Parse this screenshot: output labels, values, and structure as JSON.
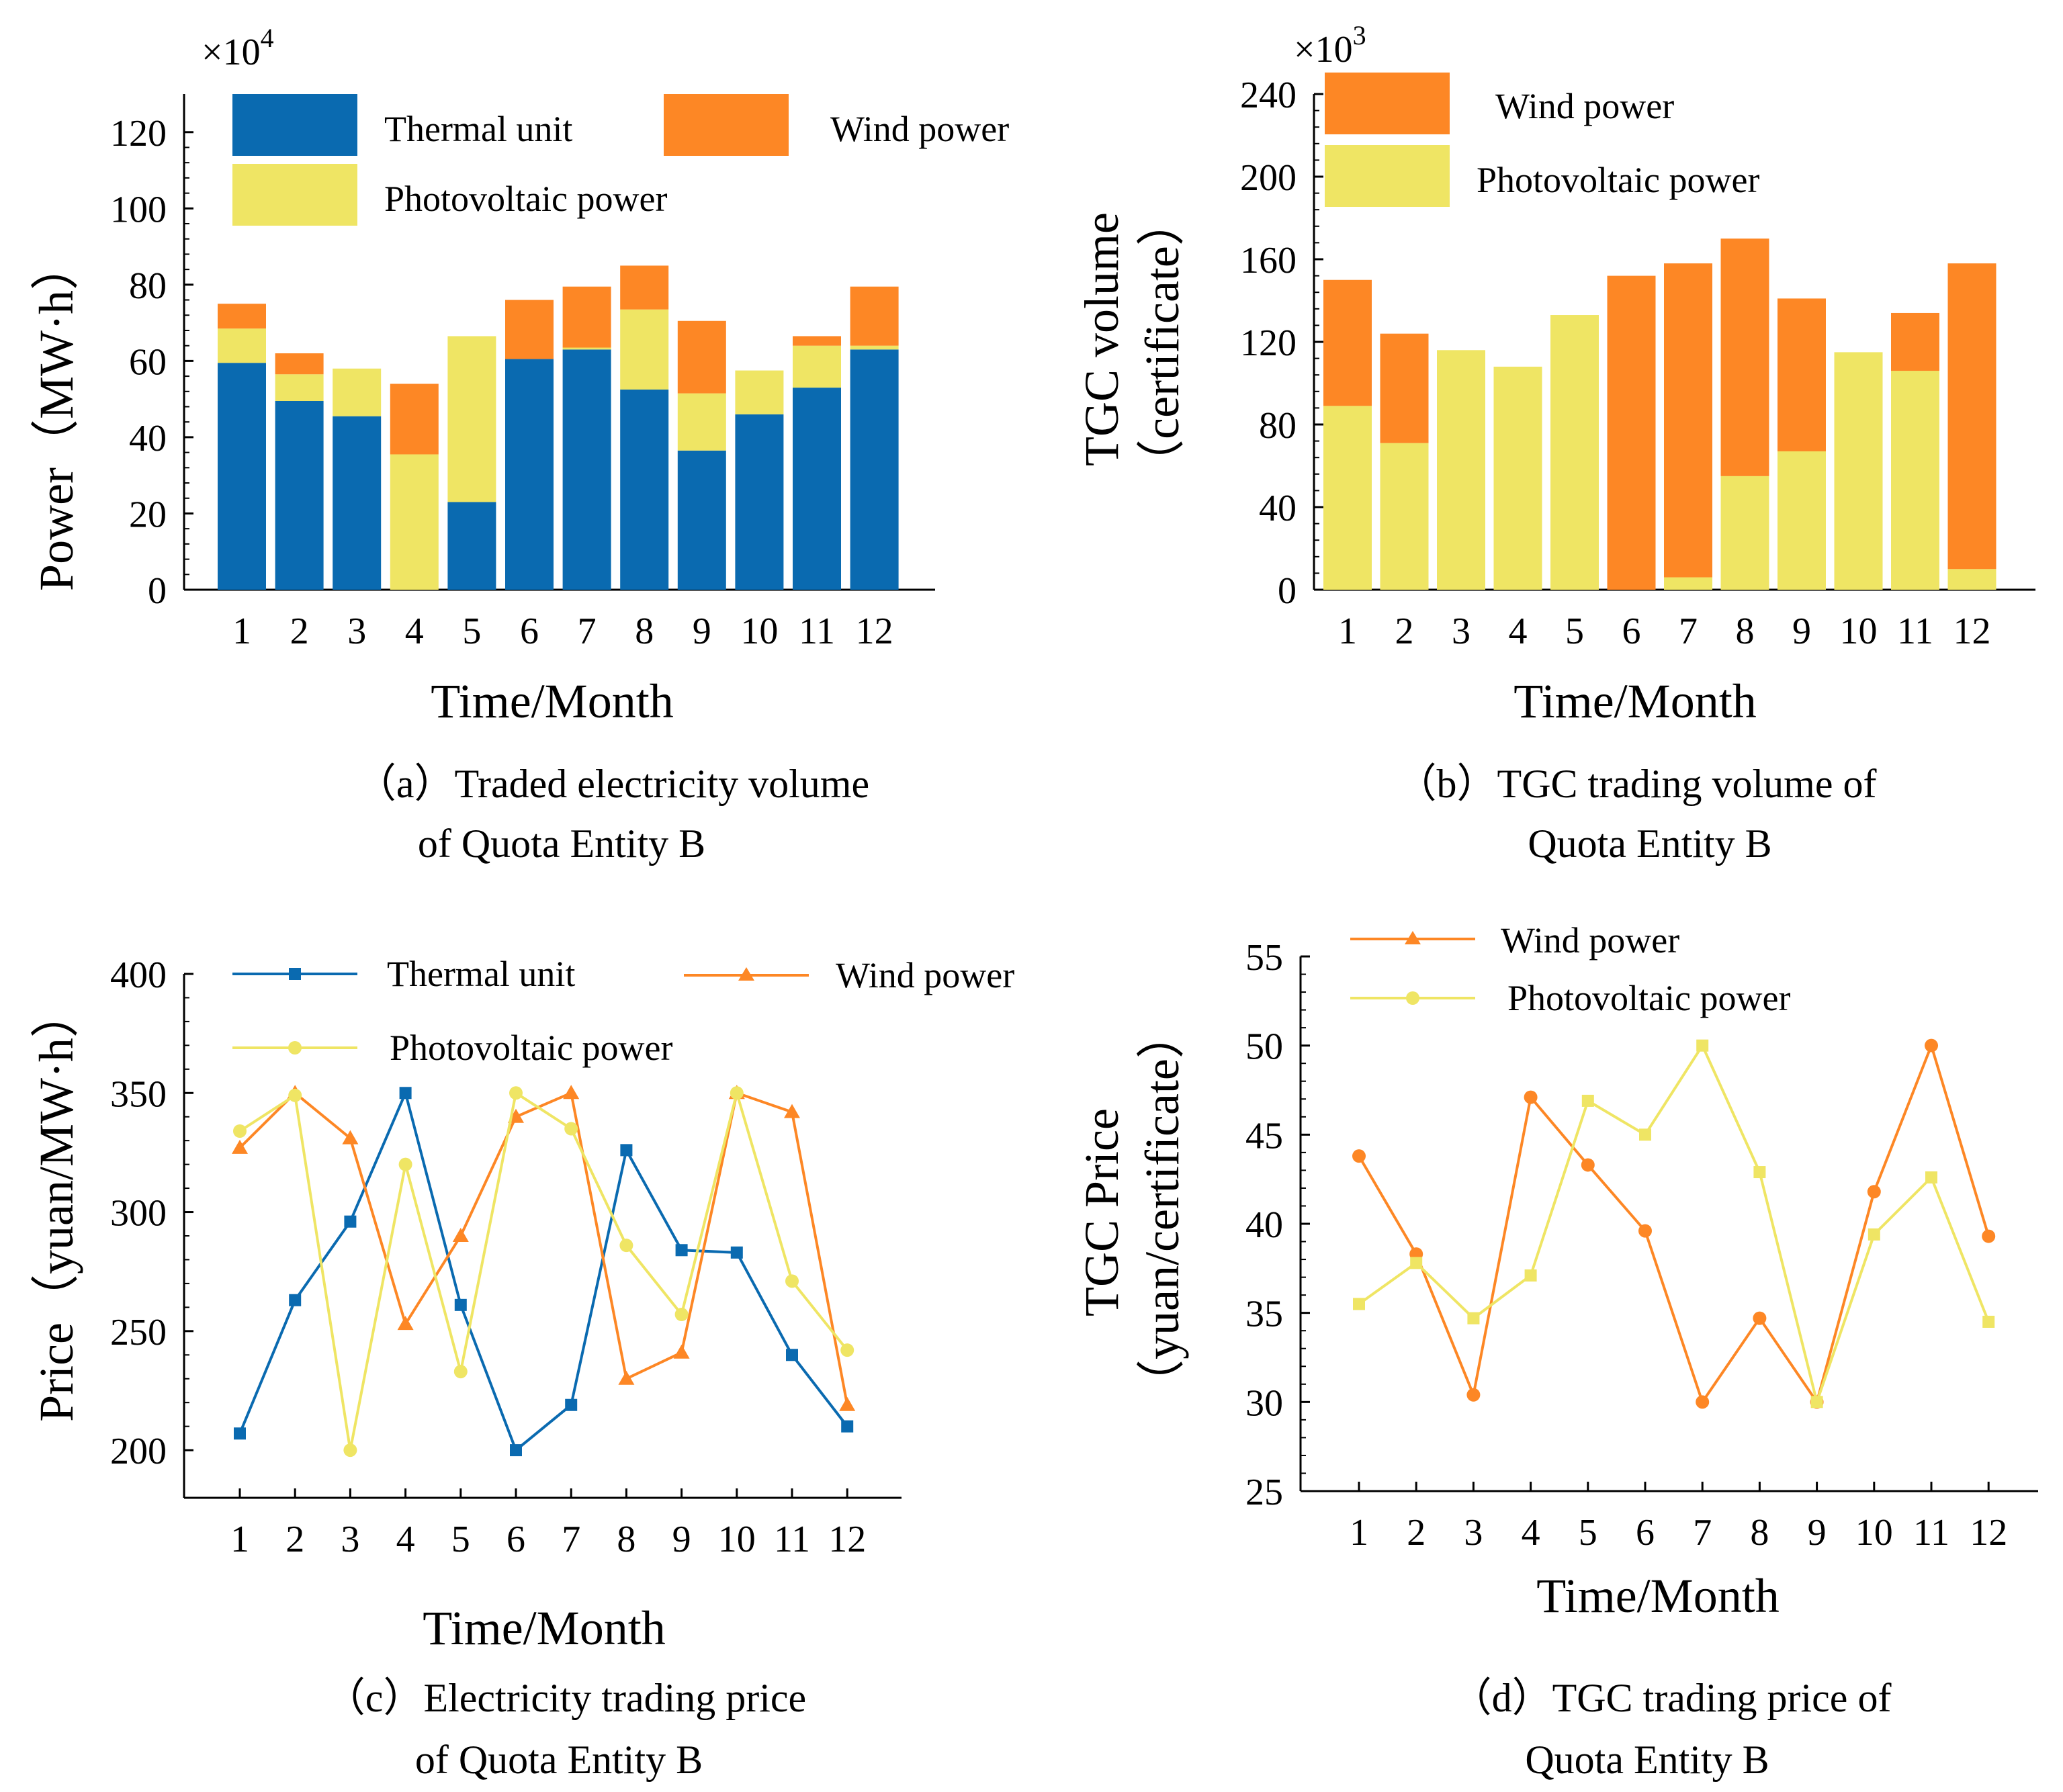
{
  "colors": {
    "thermal": "#0a6ab0",
    "wind": "#fd8725",
    "pv": "#efe564"
  },
  "chart_data": [
    {
      "id": "a",
      "type": "bar",
      "stacked": true,
      "categories": [
        "1",
        "2",
        "3",
        "4",
        "5",
        "6",
        "7",
        "8",
        "9",
        "10",
        "11",
        "12"
      ],
      "series": [
        {
          "name": "Thermal unit",
          "color": "#0a6ab0",
          "values": [
            59.5,
            49.5,
            45.5,
            0,
            23,
            60.5,
            63,
            52.5,
            36.5,
            46,
            53,
            63
          ]
        },
        {
          "name": "Photovoltaic power",
          "color": "#efe564",
          "values": [
            9,
            7,
            12.5,
            35.5,
            43.5,
            0,
            0.5,
            21,
            15,
            11.5,
            11,
            1
          ]
        },
        {
          "name": "Wind power",
          "color": "#fd8725",
          "values": [
            6.5,
            5.5,
            0,
            18.5,
            0,
            15.5,
            16,
            11.5,
            19,
            0,
            2.5,
            15.5
          ]
        }
      ],
      "ylim": [
        0,
        130
      ],
      "yticks": [
        "0",
        "20",
        "40",
        "60",
        "80",
        "100",
        "120"
      ],
      "multiplier": {
        "base": "×10",
        "exp": "4"
      },
      "ylabel": "Power（MW·h）",
      "xlabel": "Time/Month",
      "caption": [
        "（a）Traded electricity volume",
        "of Quota Entity B"
      ],
      "legend": [
        "Thermal unit",
        "Wind power",
        "Photovoltaic power"
      ]
    },
    {
      "id": "b",
      "type": "bar",
      "stacked": true,
      "categories": [
        "1",
        "2",
        "3",
        "4",
        "5",
        "6",
        "7",
        "8",
        "9",
        "10",
        "11",
        "12"
      ],
      "series": [
        {
          "name": "Photovoltaic power",
          "color": "#efe564",
          "values": [
            89,
            71,
            116,
            108,
            133,
            0,
            6,
            55,
            67,
            115,
            106,
            10
          ]
        },
        {
          "name": "Wind power",
          "color": "#fd8725",
          "values": [
            61,
            53,
            0,
            0,
            0,
            152,
            152,
            115,
            74,
            0,
            28,
            148
          ]
        }
      ],
      "ylim": [
        0,
        240
      ],
      "yticks": [
        "0",
        "40",
        "80",
        "120",
        "160",
        "200",
        "240"
      ],
      "multiplier": {
        "base": "×10",
        "exp": "3"
      },
      "ylabel": [
        "TGC volume",
        "（certificate）"
      ],
      "xlabel": "Time/Month",
      "caption": [
        "（b）TGC trading volume of",
        "Quota Entity B"
      ],
      "legend": [
        "Wind power",
        "Photovoltaic power"
      ]
    },
    {
      "id": "c",
      "type": "line",
      "categories": [
        "1",
        "2",
        "3",
        "4",
        "5",
        "6",
        "7",
        "8",
        "9",
        "10",
        "11",
        "12"
      ],
      "series": [
        {
          "name": "Thermal unit",
          "color": "#0a6ab0",
          "marker": "square",
          "values": [
            207,
            263,
            296,
            350,
            261,
            200,
            219,
            326,
            284,
            283,
            240,
            210
          ]
        },
        {
          "name": "Wind power",
          "color": "#fd8725",
          "marker": "triangle",
          "values": [
            327,
            350,
            331,
            253,
            290,
            340,
            350,
            230,
            241,
            350,
            342,
            219
          ]
        },
        {
          "name": "Photovoltaic power",
          "color": "#efe564",
          "marker": "circle",
          "values": [
            334,
            349,
            200,
            320,
            233,
            350,
            335,
            286,
            257,
            350,
            271,
            242
          ]
        }
      ],
      "ylim": [
        180,
        400
      ],
      "yticks": [
        200,
        250,
        300,
        350,
        400
      ],
      "ylabel": "Price（yuan/MW·h）",
      "xlabel": "Time/Month",
      "caption": [
        "（c）Electricity trading price",
        "of Quota Entity B"
      ],
      "legend": [
        "Thermal unit",
        "Wind power",
        "Photovoltaic power"
      ]
    },
    {
      "id": "d",
      "type": "line",
      "categories": [
        "1",
        "2",
        "3",
        "4",
        "5",
        "6",
        "7",
        "8",
        "9",
        "10",
        "11",
        "12"
      ],
      "series": [
        {
          "name": "Wind power",
          "color": "#fd8725",
          "marker": "circle",
          "legend_marker": "triangle",
          "values": [
            43.8,
            38.3,
            30.4,
            47.1,
            43.3,
            39.6,
            30,
            34.7,
            30,
            41.8,
            50,
            39.3
          ]
        },
        {
          "name": "Photovoltaic power",
          "color": "#efe564",
          "marker": "square",
          "legend_marker": "circle",
          "values": [
            35.5,
            37.8,
            34.7,
            37.1,
            46.9,
            45,
            50,
            42.9,
            30,
            39.4,
            42.6,
            34.5
          ]
        }
      ],
      "ylim": [
        25,
        55
      ],
      "yticks": [
        25,
        30,
        35,
        40,
        45,
        50,
        55
      ],
      "ylabel": [
        "TGC Price",
        "（yuan/certificate）"
      ],
      "xlabel": "Time/Month",
      "caption": [
        "（d）TGC trading price of",
        "Quota Entity B"
      ],
      "legend": [
        "Wind power",
        "Photovoltaic power"
      ]
    }
  ]
}
